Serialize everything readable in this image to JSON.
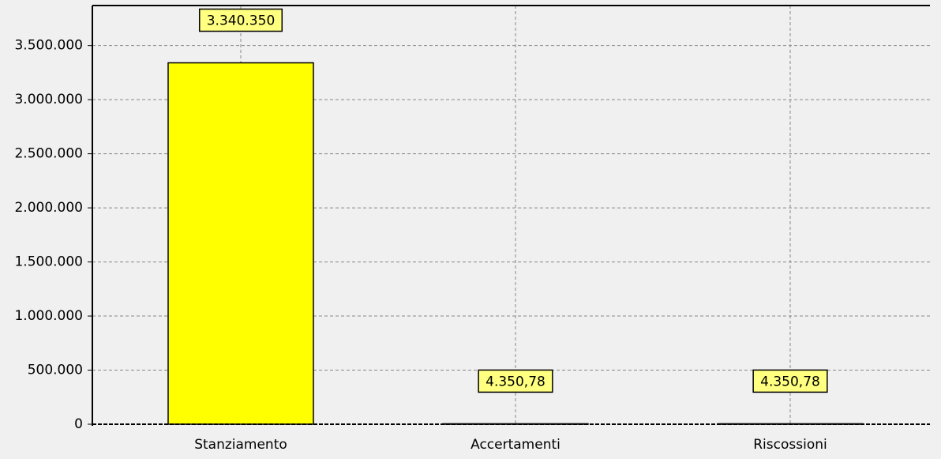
{
  "chart_data": {
    "type": "bar",
    "categories": [
      "Stanziamento",
      "Accertamenti",
      "Riscossioni"
    ],
    "values": [
      3340350,
      4350.78,
      4350.78
    ],
    "value_labels": [
      "3.340.350",
      "4.350,78",
      "4.350,78"
    ],
    "color": "#ffff00",
    "ylim": [
      0,
      3870000
    ],
    "yticks": [
      0,
      {
        "value": 500000,
        "label": "500.000"
      },
      {
        "value": 1000000,
        "label": "1.000.000"
      },
      {
        "value": 1500000,
        "label": "1.500.000"
      },
      {
        "value": 2000000,
        "label": "2.000.000"
      },
      {
        "value": 2500000,
        "label": "2.500.000"
      },
      {
        "value": 3000000,
        "label": "3.000.000"
      },
      {
        "value": 3500000,
        "label": "3.500.000"
      }
    ],
    "grid": true
  }
}
